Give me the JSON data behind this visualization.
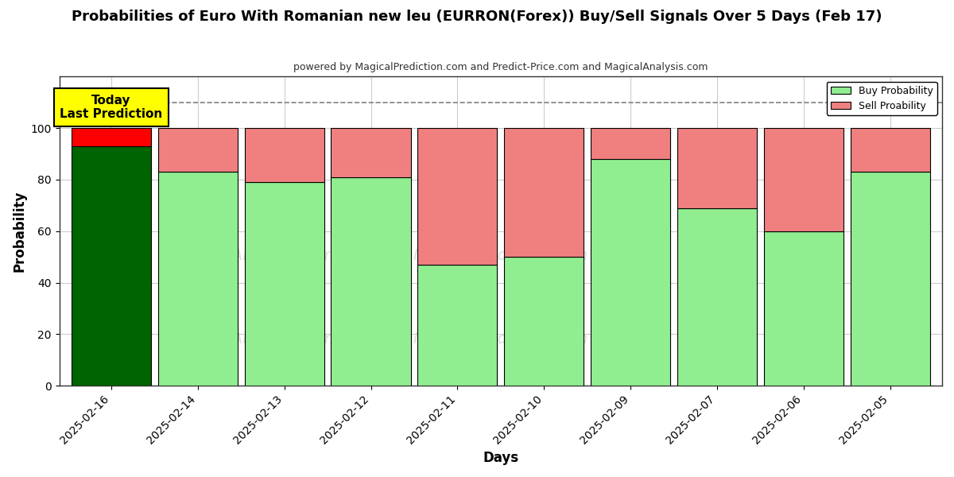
{
  "title": "Probabilities of Euro With Romanian new leu (EURRON(Forex)) Buy/Sell Signals Over 5 Days (Feb 17)",
  "subtitle": "powered by MagicalPrediction.com and Predict-Price.com and MagicalAnalysis.com",
  "xlabel": "Days",
  "ylabel": "Probability",
  "dates": [
    "2025-02-16",
    "2025-02-14",
    "2025-02-13",
    "2025-02-12",
    "2025-02-11",
    "2025-02-10",
    "2025-02-09",
    "2025-02-07",
    "2025-02-06",
    "2025-02-05"
  ],
  "buy_values": [
    93,
    83,
    79,
    81,
    47,
    50,
    88,
    69,
    60,
    83
  ],
  "sell_values": [
    7,
    17,
    21,
    19,
    53,
    50,
    12,
    31,
    40,
    17
  ],
  "today_bar_buy_color": "#006400",
  "today_bar_sell_color": "#FF0000",
  "buy_color": "#90EE90",
  "sell_color": "#F08080",
  "bar_edge_color": "#000000",
  "ylim": [
    0,
    120
  ],
  "yticks": [
    0,
    20,
    40,
    60,
    80,
    100
  ],
  "dashed_line_y": 110,
  "today_label_text": "Today\nLast Prediction",
  "legend_buy": "Buy Probability",
  "legend_sell": "Sell Proability",
  "background_color": "#ffffff",
  "grid_color": "#cccccc",
  "bar_width": 0.92
}
